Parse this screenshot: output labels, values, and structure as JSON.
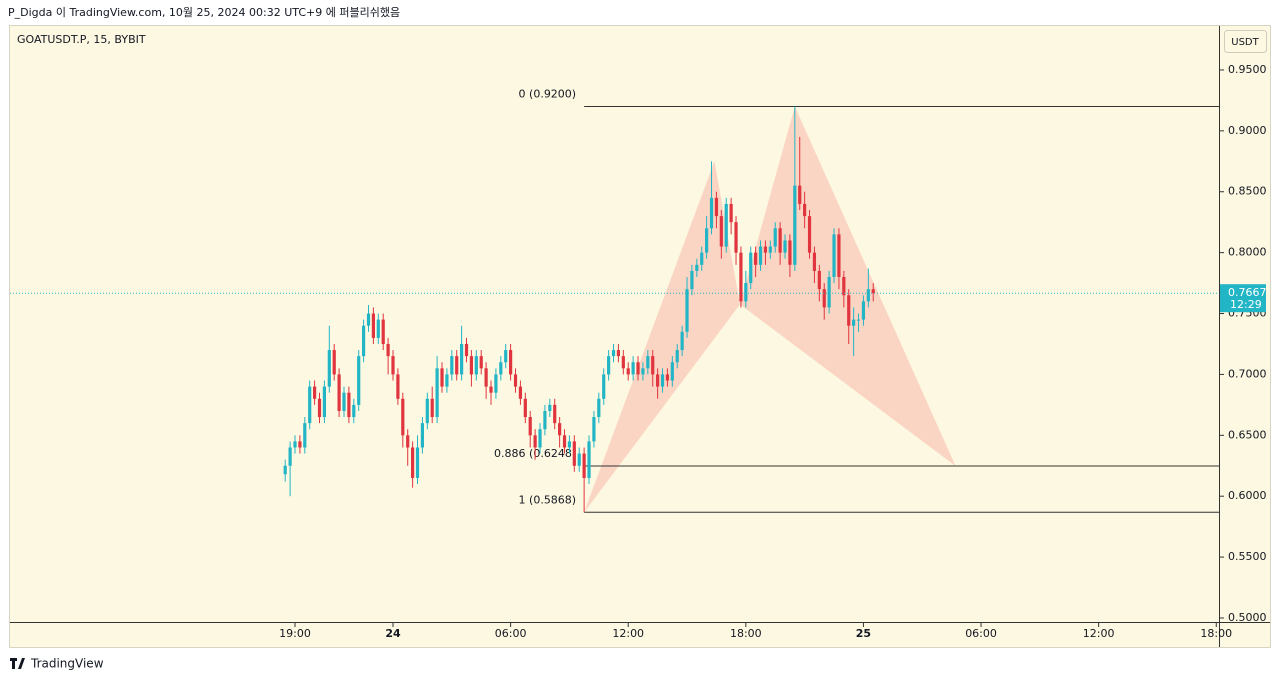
{
  "header": {
    "caption": "P_Digda 이 TradingView.com, 10월 25, 2024 00:32 UTC+9 에 퍼블리쉬했음",
    "currency_button": "USDT"
  },
  "footer": {
    "brand": "TradingView"
  },
  "chart_data": {
    "type": "candlestick",
    "title": "GOATUSDT.P, 15, BYBIT",
    "up_color": "#22b5c6",
    "down_color": "#e0343f",
    "x": [
      -5.5,
      -5.25,
      -5,
      -4.75,
      -4.5,
      -4.25,
      -4,
      -3.75,
      -3.5,
      -3.25,
      -3,
      -2.75,
      -2.5,
      -2.25,
      -2,
      -1.75,
      -1.5,
      -1.25,
      -1,
      -0.75,
      -0.5,
      -0.25,
      0,
      0.25,
      0.5,
      0.75,
      1,
      1.25,
      1.5,
      1.75,
      2,
      2.25,
      2.5,
      2.75,
      3,
      3.25,
      3.5,
      3.75,
      4,
      4.25,
      4.5,
      4.75,
      5,
      5.25,
      5.5,
      5.75,
      6,
      6.25,
      6.5,
      6.75,
      7,
      7.25,
      7.5,
      7.75,
      8,
      8.25,
      8.5,
      8.75,
      9,
      9.25,
      9.5,
      9.75,
      10,
      10.25,
      10.5,
      10.75,
      11,
      11.25,
      11.5,
      11.75,
      12,
      12.25,
      12.5,
      12.75,
      13,
      13.25,
      13.5,
      13.75,
      14,
      14.25,
      14.5,
      14.75,
      15,
      15.25,
      15.5,
      15.75,
      16,
      16.25,
      16.5,
      16.75,
      17,
      17.25,
      17.5,
      17.75,
      18,
      18.25,
      18.5,
      18.75,
      19,
      19.25,
      19.5,
      19.75,
      20,
      20.25,
      20.5,
      20.75,
      21,
      21.25,
      21.5,
      21.75,
      22,
      22.25,
      22.5,
      22.75,
      23,
      23.25,
      23.5,
      23.75,
      24,
      24.25,
      24.5
    ],
    "open": [
      0.618,
      0.625,
      0.64,
      0.645,
      0.64,
      0.66,
      0.69,
      0.68,
      0.665,
      0.69,
      0.72,
      0.7,
      0.67,
      0.685,
      0.665,
      0.675,
      0.715,
      0.74,
      0.75,
      0.73,
      0.745,
      0.725,
      0.715,
      0.7,
      0.68,
      0.65,
      0.64,
      0.615,
      0.64,
      0.66,
      0.68,
      0.665,
      0.705,
      0.69,
      0.7,
      0.715,
      0.7,
      0.725,
      0.715,
      0.7,
      0.715,
      0.705,
      0.69,
      0.685,
      0.7,
      0.71,
      0.72,
      0.7,
      0.69,
      0.68,
      0.665,
      0.65,
      0.64,
      0.655,
      0.67,
      0.675,
      0.66,
      0.65,
      0.64,
      0.645,
      0.625,
      0.635,
      0.615,
      0.645,
      0.665,
      0.68,
      0.7,
      0.715,
      0.72,
      0.715,
      0.705,
      0.7,
      0.71,
      0.7,
      0.705,
      0.715,
      0.7,
      0.69,
      0.7,
      0.695,
      0.71,
      0.72,
      0.735,
      0.77,
      0.785,
      0.79,
      0.8,
      0.82,
      0.845,
      0.83,
      0.805,
      0.84,
      0.825,
      0.8,
      0.76,
      0.775,
      0.8,
      0.79,
      0.805,
      0.8,
      0.805,
      0.82,
      0.8,
      0.81,
      0.79,
      0.855,
      0.84,
      0.83,
      0.8,
      0.785,
      0.77,
      0.755,
      0.78,
      0.815,
      0.78,
      0.765,
      0.74,
      0.745,
      0.745,
      0.76,
      0.77
    ],
    "high": [
      0.63,
      0.645,
      0.65,
      0.65,
      0.665,
      0.695,
      0.695,
      0.685,
      0.695,
      0.74,
      0.725,
      0.705,
      0.69,
      0.69,
      0.68,
      0.72,
      0.745,
      0.757,
      0.755,
      0.75,
      0.75,
      0.73,
      0.72,
      0.705,
      0.685,
      0.655,
      0.645,
      0.65,
      0.665,
      0.685,
      0.69,
      0.715,
      0.71,
      0.705,
      0.72,
      0.72,
      0.74,
      0.73,
      0.72,
      0.72,
      0.72,
      0.71,
      0.695,
      0.705,
      0.715,
      0.725,
      0.725,
      0.705,
      0.695,
      0.685,
      0.67,
      0.655,
      0.66,
      0.675,
      0.68,
      0.68,
      0.665,
      0.655,
      0.65,
      0.65,
      0.64,
      0.64,
      0.65,
      0.67,
      0.685,
      0.705,
      0.72,
      0.725,
      0.725,
      0.72,
      0.71,
      0.715,
      0.715,
      0.71,
      0.72,
      0.72,
      0.705,
      0.705,
      0.705,
      0.715,
      0.725,
      0.74,
      0.78,
      0.79,
      0.795,
      0.805,
      0.83,
      0.875,
      0.85,
      0.835,
      0.845,
      0.845,
      0.83,
      0.805,
      0.785,
      0.805,
      0.805,
      0.81,
      0.81,
      0.81,
      0.825,
      0.825,
      0.815,
      0.815,
      0.92,
      0.895,
      0.85,
      0.835,
      0.805,
      0.79,
      0.775,
      0.785,
      0.82,
      0.82,
      0.785,
      0.77,
      0.755,
      0.75,
      0.765,
      0.787,
      0.775
    ],
    "low": [
      0.612,
      0.6,
      0.635,
      0.635,
      0.635,
      0.655,
      0.675,
      0.66,
      0.66,
      0.685,
      0.695,
      0.665,
      0.665,
      0.66,
      0.66,
      0.67,
      0.71,
      0.735,
      0.725,
      0.725,
      0.72,
      0.7,
      0.695,
      0.675,
      0.64,
      0.625,
      0.607,
      0.61,
      0.635,
      0.655,
      0.66,
      0.66,
      0.685,
      0.685,
      0.695,
      0.695,
      0.695,
      0.71,
      0.69,
      0.695,
      0.7,
      0.68,
      0.675,
      0.68,
      0.695,
      0.705,
      0.695,
      0.685,
      0.675,
      0.66,
      0.64,
      0.63,
      0.635,
      0.65,
      0.665,
      0.655,
      0.64,
      0.635,
      0.635,
      0.62,
      0.62,
      0.5868,
      0.61,
      0.64,
      0.66,
      0.675,
      0.695,
      0.71,
      0.71,
      0.7,
      0.695,
      0.695,
      0.695,
      0.695,
      0.7,
      0.69,
      0.68,
      0.685,
      0.69,
      0.69,
      0.705,
      0.715,
      0.73,
      0.765,
      0.78,
      0.785,
      0.795,
      0.815,
      0.82,
      0.795,
      0.8,
      0.815,
      0.79,
      0.755,
      0.755,
      0.77,
      0.78,
      0.785,
      0.79,
      0.795,
      0.8,
      0.79,
      0.795,
      0.78,
      0.785,
      0.835,
      0.82,
      0.795,
      0.775,
      0.76,
      0.745,
      0.75,
      0.775,
      0.77,
      0.755,
      0.725,
      0.715,
      0.735,
      0.74,
      0.755,
      0.76
    ],
    "close": [
      0.625,
      0.64,
      0.645,
      0.64,
      0.66,
      0.69,
      0.68,
      0.665,
      0.69,
      0.72,
      0.7,
      0.67,
      0.685,
      0.665,
      0.675,
      0.715,
      0.74,
      0.75,
      0.73,
      0.745,
      0.725,
      0.715,
      0.7,
      0.68,
      0.65,
      0.64,
      0.615,
      0.64,
      0.66,
      0.68,
      0.665,
      0.705,
      0.69,
      0.7,
      0.715,
      0.7,
      0.725,
      0.715,
      0.7,
      0.715,
      0.705,
      0.69,
      0.685,
      0.7,
      0.71,
      0.72,
      0.7,
      0.69,
      0.68,
      0.665,
      0.65,
      0.64,
      0.655,
      0.67,
      0.675,
      0.66,
      0.65,
      0.64,
      0.645,
      0.625,
      0.635,
      0.615,
      0.645,
      0.665,
      0.68,
      0.7,
      0.715,
      0.72,
      0.715,
      0.705,
      0.7,
      0.71,
      0.7,
      0.705,
      0.715,
      0.7,
      0.69,
      0.7,
      0.695,
      0.71,
      0.72,
      0.735,
      0.77,
      0.785,
      0.79,
      0.8,
      0.82,
      0.845,
      0.83,
      0.805,
      0.84,
      0.825,
      0.8,
      0.76,
      0.775,
      0.8,
      0.79,
      0.805,
      0.8,
      0.805,
      0.82,
      0.8,
      0.81,
      0.79,
      0.855,
      0.84,
      0.83,
      0.8,
      0.785,
      0.77,
      0.755,
      0.78,
      0.815,
      0.78,
      0.765,
      0.74,
      0.745,
      0.745,
      0.76,
      0.77,
      0.7667
    ],
    "xlim": [
      -19.54,
      42.14
    ],
    "xticks": [
      {
        "value": -5,
        "label": "19:00"
      },
      {
        "value": 0,
        "label": "24"
      },
      {
        "value": 6,
        "label": "06:00"
      },
      {
        "value": 12,
        "label": "12:00"
      },
      {
        "value": 18,
        "label": "18:00"
      },
      {
        "value": 24,
        "label": "25"
      },
      {
        "value": 30,
        "label": "06:00"
      },
      {
        "value": 36,
        "label": "12:00"
      },
      {
        "value": 42,
        "label": "18:00"
      }
    ],
    "ylim": [
      0.4967,
      0.9861
    ],
    "yticks": [
      {
        "value": 0.5,
        "label": "0.5000"
      },
      {
        "value": 0.55,
        "label": "0.5500"
      },
      {
        "value": 0.6,
        "label": "0.6000"
      },
      {
        "value": 0.65,
        "label": "0.6500"
      },
      {
        "value": 0.7,
        "label": "0.7000"
      },
      {
        "value": 0.75,
        "label": "0.7500"
      },
      {
        "value": 0.8,
        "label": "0.8000"
      },
      {
        "value": 0.85,
        "label": "0.8500"
      },
      {
        "value": 0.9,
        "label": "0.9000"
      },
      {
        "value": 0.95,
        "label": "0.9500"
      }
    ],
    "last_price": {
      "value": 0.7667,
      "label": "0.7667",
      "countdown": "12:29"
    },
    "fib_levels": [
      {
        "label": "0 (0.9200)",
        "value": 0.92
      },
      {
        "label": "0.886 (0.6248)",
        "value": 0.6248
      },
      {
        "label": "1 (0.5868)",
        "value": 0.5868
      }
    ],
    "pattern": {
      "color": "#f9c9b8",
      "points": [
        {
          "x": 9.75,
          "y": 0.5868
        },
        {
          "x": 16.4,
          "y": 0.875
        },
        {
          "x": 17.7,
          "y": 0.7575
        },
        {
          "x": 20.5,
          "y": 0.92
        },
        {
          "x": 28.7,
          "y": 0.6248
        }
      ]
    }
  }
}
